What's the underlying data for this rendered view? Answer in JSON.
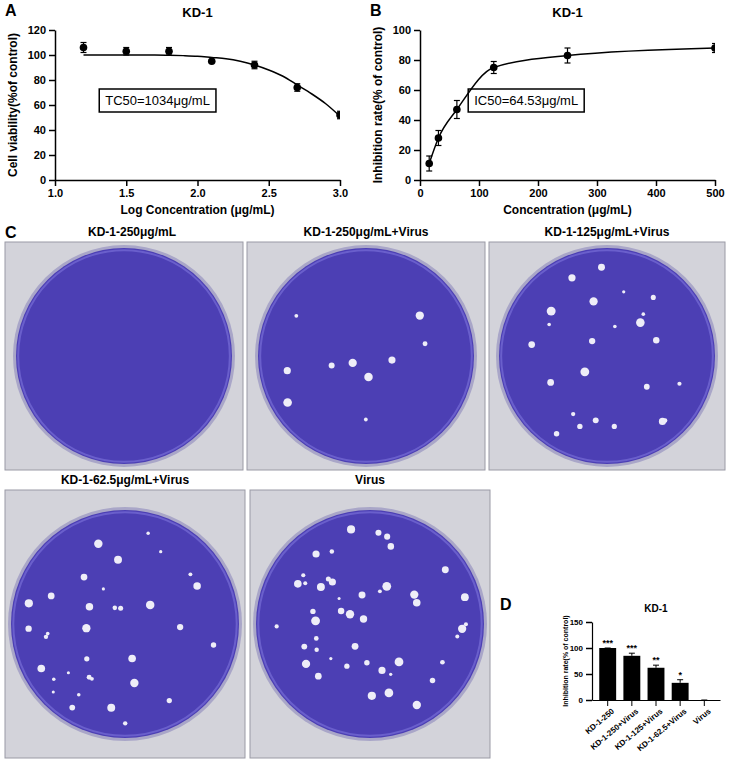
{
  "chart_data": [
    {
      "type": "line",
      "panel": "A",
      "title": "KD-1",
      "x_label": "Log Concentration (μg/mL)",
      "y_label": "Cell viability(%of control)",
      "annotation": "TC50=1034μg/mL",
      "xlim": [
        1,
        3
      ],
      "xticks": [
        {
          "value": 1,
          "label": "1.0"
        },
        {
          "value": 1.5,
          "label": "1.5"
        },
        {
          "value": 2,
          "label": "2.0"
        },
        {
          "value": 2.5,
          "label": "2.5"
        },
        {
          "value": 3,
          "label": "3.0"
        }
      ],
      "ylim": [
        0,
        120
      ],
      "yticks": [
        0,
        20,
        40,
        60,
        80,
        100,
        120
      ],
      "series": [
        {
          "type": "scatter",
          "marker": "circle",
          "color": "#000000",
          "x": [
            1.2,
            1.5,
            1.8,
            2.1,
            2.4,
            2.7,
            3.0
          ],
          "values": [
            106,
            103,
            103,
            95,
            92,
            74,
            52
          ],
          "errors": [
            4,
            3,
            3,
            1,
            3,
            3,
            3
          ]
        },
        {
          "type": "line",
          "color": "#000000",
          "x": [
            1.2,
            1.3,
            1.4,
            1.5,
            1.6,
            1.7,
            1.8,
            1.9,
            2.0,
            2.1,
            2.2,
            2.3,
            2.4,
            2.5,
            2.6,
            2.7,
            2.8,
            2.9,
            3.0
          ],
          "values": [
            100,
            100,
            100,
            100,
            100,
            100,
            99.8,
            99.5,
            99,
            98,
            97,
            95,
            92,
            88,
            83,
            76,
            69,
            61,
            51
          ]
        }
      ]
    },
    {
      "type": "line",
      "panel": "B",
      "title": "KD-1",
      "x_label": "Concentration (μg/mL)",
      "y_label": "Inhibition rate(% of control)",
      "annotation": "IC50=64.53μg/mL",
      "xlim": [
        0,
        500
      ],
      "xticks": [
        0,
        100,
        200,
        300,
        400,
        500
      ],
      "ylim": [
        0,
        100
      ],
      "yticks": [
        0,
        20,
        40,
        60,
        80,
        100
      ],
      "series": [
        {
          "type": "line",
          "marker": "circle",
          "color": "#000000",
          "x": [
            15.6,
            31.25,
            62.5,
            125,
            250,
            500
          ],
          "values": [
            11,
            28,
            47,
            75,
            83,
            88
          ],
          "errors": [
            5,
            5,
            6,
            4,
            5,
            3
          ]
        }
      ]
    },
    {
      "type": "bar",
      "panel": "D",
      "title": "KD-1",
      "y_label": "Inhibition rate(% of control)",
      "categories": [
        "KD-1-250",
        "KD-1-250+Virus",
        "KD-1-125+Virus",
        "KD-1-62.5+Virus",
        "Virus"
      ],
      "values": [
        100,
        85,
        62,
        33,
        0
      ],
      "errors": [
        0,
        5,
        5,
        6,
        0
      ],
      "significance": [
        "***",
        "***",
        "**",
        "*",
        null
      ],
      "color": "#000000",
      "ylim": [
        0,
        150
      ],
      "yticks": [
        0,
        50,
        100,
        150
      ]
    }
  ],
  "plates": {
    "panel": "C",
    "items": [
      {
        "title": "KD-1-250μg/mL",
        "plaques": 0
      },
      {
        "title": "KD-1-250μg/mL+Virus",
        "plaques": 10
      },
      {
        "title": "KD-1-125μg/mL+Virus",
        "plaques": 24
      },
      {
        "title": "KD-1-62.5μg/mL+Virus",
        "plaques": 34
      },
      {
        "title": "Virus",
        "plaques": 46
      }
    ]
  }
}
